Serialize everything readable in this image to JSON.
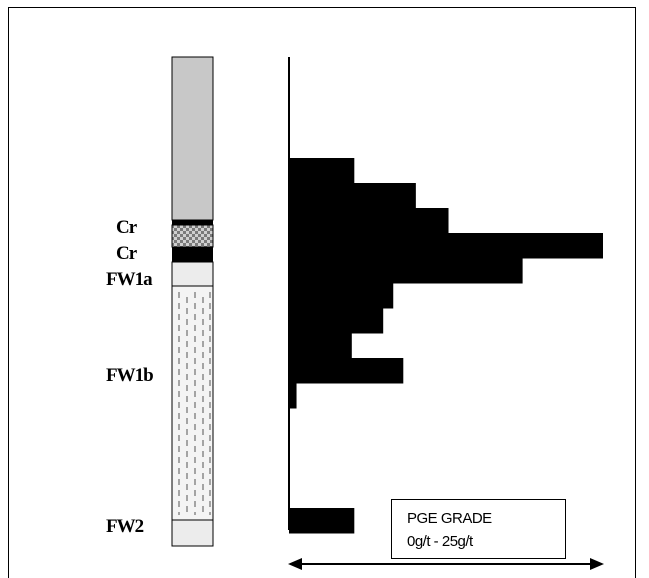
{
  "colors": {
    "bars": "#000000",
    "upper_unit": "#c8c8c8",
    "pale_unit": "#ececec",
    "mottled_unit": "#9a9a9a",
    "dashed_unit": "#d9d9d9"
  },
  "strat_labels": [
    {
      "id": "cr-upper",
      "text": "Cr"
    },
    {
      "id": "cr-lower",
      "text": "Cr"
    },
    {
      "id": "fw1a",
      "text": "FW1a"
    },
    {
      "id": "fw1b",
      "text": "FW1b"
    },
    {
      "id": "fw2",
      "text": "FW2"
    }
  ],
  "legend": {
    "title": "PGE GRADE",
    "range": "0g/t - 25g/t"
  },
  "icons": {
    "left_arrow": "arrow-left-icon",
    "right_arrow": "arrow-right-icon"
  },
  "chart_data": {
    "type": "bar",
    "orientation": "horizontal",
    "x_range_label": "0g/t - 25g/t",
    "xlim": [
      0,
      25
    ],
    "values": [
      5.2,
      10.1,
      12.7,
      25,
      18.6,
      8.3,
      7.5,
      5.0,
      9.1,
      0.6,
      5.2
    ]
  }
}
